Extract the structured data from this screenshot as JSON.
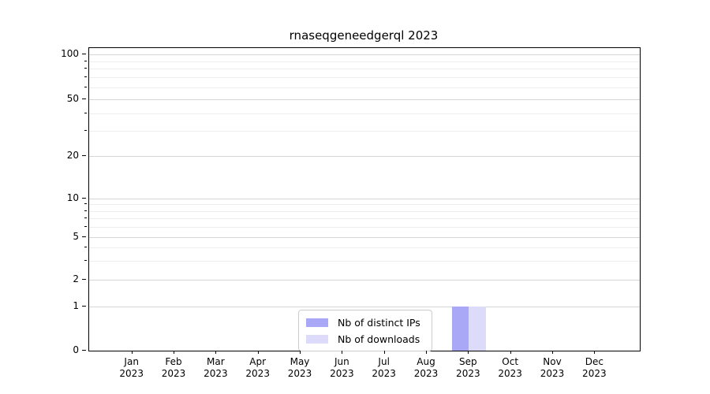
{
  "title": "rnaseqgeneedgerql 2023",
  "colors": {
    "distinct_ips": "#a8a8f7",
    "downloads": "#dcdcfa",
    "grid_major": "#d4d4d4",
    "grid_minor": "#ededed",
    "axis": "#000000",
    "legend_border": "#cccccc"
  },
  "chart_data": {
    "type": "bar",
    "title": "rnaseqgeneedgerql 2023",
    "categories": [
      "Jan 2023",
      "Feb 2023",
      "Mar 2023",
      "Apr 2023",
      "May 2023",
      "Jun 2023",
      "Jul 2023",
      "Aug 2023",
      "Sep 2023",
      "Oct 2023",
      "Nov 2023",
      "Dec 2023"
    ],
    "series": [
      {
        "name": "Nb of distinct IPs",
        "color_key": "distinct_ips",
        "values": [
          0,
          0,
          0,
          0,
          0,
          0,
          0,
          0,
          1,
          0,
          0,
          0
        ]
      },
      {
        "name": "Nb of downloads",
        "color_key": "downloads",
        "values": [
          0,
          0,
          0,
          0,
          0,
          0,
          0,
          0,
          1,
          0,
          0,
          0
        ]
      }
    ],
    "yticks": [
      0,
      1,
      2,
      5,
      10,
      20,
      50,
      100
    ],
    "y_minor_ticks": [
      3,
      4,
      6,
      7,
      8,
      9,
      30,
      40,
      60,
      70,
      80,
      90
    ],
    "ylim": [
      0,
      105
    ],
    "yscale": "symlog",
    "grid": "horizontal",
    "legend_position": "lower center",
    "xlabel": "",
    "ylabel": ""
  }
}
